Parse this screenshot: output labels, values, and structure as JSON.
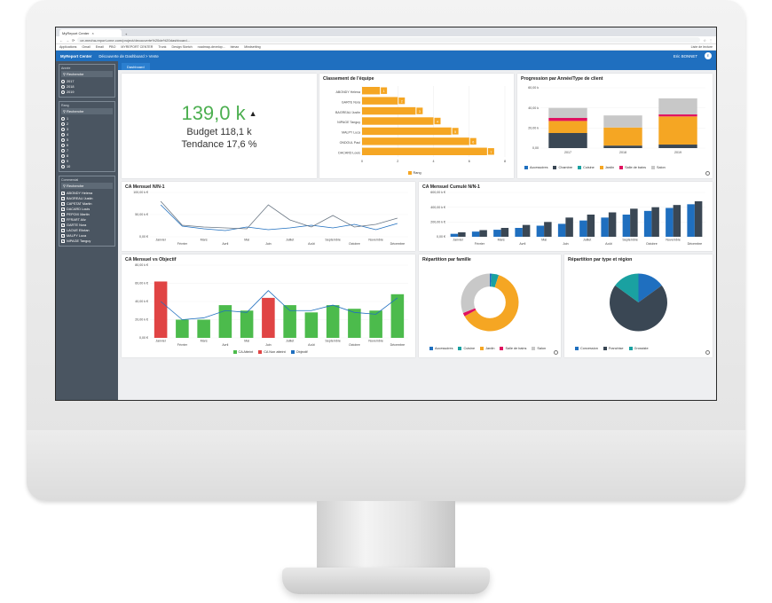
{
  "browser": {
    "tab_title": "MyReport Center",
    "url": "ce-mecha-report-cme.com/project/decouverte%20de%20dashboard...",
    "bookmarks": [
      "Applications",
      "Gmail",
      "Email",
      "PBO",
      "MYREPORT CENTER",
      "Trunk",
      "Design Sketch",
      "roadmap-develop...",
      "bimax",
      "Mindsetting"
    ],
    "bookmarks_right": "Liste de lecture"
  },
  "app": {
    "brand": "MyReport Center",
    "breadcrumb": "Découverte de Dashboard > Vente",
    "user": "Eric BONNET",
    "avatar": "E",
    "tab": "Dashboard"
  },
  "sidebar": {
    "years": {
      "title": "Année",
      "search": "Recherche",
      "options": [
        "2017",
        "2018",
        "2019"
      ]
    },
    "rangs": {
      "title": "Rang",
      "search": "Recherche",
      "options": [
        "1",
        "2",
        "3",
        "4",
        "5",
        "6",
        "7",
        "8",
        "9",
        "10"
      ]
    },
    "commercial": {
      "title": "Commercial",
      "search": "Recherche",
      "options": [
        "ABONDY Helena",
        "BAGREAU Justin",
        "CAPSTAT Martin",
        "DACARD Louis",
        "PEPOIX Martin",
        "FFRART Aliz",
        "GARTE Nora",
        "LAOUE Eliotan",
        "MALPY Luca",
        "NIPAGE Tanguy"
      ]
    }
  },
  "kpi": {
    "value": "139,0 k",
    "budget": "Budget 118,1 k",
    "tendance": "Tendance 17,6 %"
  },
  "colors": {
    "accent": "#1f6fbf",
    "green": "#4cbb4c",
    "red": "#e04444",
    "orange": "#f5a623",
    "navy": "#3a4754",
    "teal": "#1aa1a1",
    "blue": "#1f6fbf",
    "pink": "#e0115f",
    "grey": "#c8c8c8"
  },
  "chart_data": [
    {
      "id": "classement",
      "type": "bar",
      "title": "Classement de l'équipe",
      "categories": [
        "ABONDY Helena",
        "GARTE Nora",
        "BAGREAU Justin",
        "NIPAGE Tanguy",
        "MALPY Luca",
        "ONDOUL Paul",
        "DACARD Louis"
      ],
      "values": [
        1,
        2,
        3,
        4,
        5,
        6,
        7
      ],
      "xlim": [
        0,
        8
      ],
      "ticks": [
        "0",
        "2",
        "4",
        "6",
        "8"
      ],
      "legend": [
        "Rang"
      ]
    },
    {
      "id": "progression",
      "type": "bar",
      "title": "Progression par Année/Type de client",
      "categories": [
        "2017",
        "2018",
        "2019"
      ],
      "ylim": [
        0,
        60000
      ],
      "yticks": [
        "0,00",
        "20,00 k",
        "40,00 k",
        "60,00 k"
      ],
      "series": [
        {
          "name": "Accessoires",
          "color": "#1f6fbf",
          "values": [
            0,
            0,
            0
          ]
        },
        {
          "name": "Chambre",
          "color": "#3a4754",
          "values": [
            15000,
            2500,
            3500
          ]
        },
        {
          "name": "Cuisine",
          "color": "#1aa1a1",
          "values": [
            0,
            0,
            0
          ]
        },
        {
          "name": "Jardin",
          "color": "#f5a623",
          "values": [
            12000,
            18000,
            28000
          ]
        },
        {
          "name": "Salle de bains",
          "color": "#e0115f",
          "values": [
            3000,
            0,
            2000
          ]
        },
        {
          "name": "Salon",
          "color": "#c8c8c8",
          "values": [
            10000,
            12000,
            16000
          ]
        }
      ]
    },
    {
      "id": "ca_mensuel",
      "type": "line",
      "title": "CA Mensuel N/N-1",
      "categories": [
        "Janvier",
        "Février",
        "Mars",
        "Avril",
        "Mai",
        "Juin",
        "Juillet",
        "Août",
        "Septembre",
        "Octobre",
        "Novembre",
        "Décembre"
      ],
      "ylim": [
        0,
        100000
      ],
      "yticks": [
        "0,00 €",
        "50,00 k €",
        "100,00 k €"
      ],
      "series": [
        {
          "name": "N",
          "values": [
            72000,
            24000,
            18000,
            14000,
            22000,
            16000,
            20000,
            26000,
            20000,
            28000,
            16000,
            30000
          ]
        },
        {
          "name": "N-1",
          "values": [
            80000,
            26000,
            22000,
            20000,
            18000,
            72000,
            38000,
            22000,
            48000,
            22000,
            28000,
            42000
          ]
        }
      ]
    },
    {
      "id": "ca_cumule",
      "type": "bar",
      "title": "CA Mensuel Cumulé N/N-1",
      "categories": [
        "Janvier",
        "Février",
        "Mars",
        "Avril",
        "Mai",
        "Juin",
        "Juillet",
        "Août",
        "Septembre",
        "Octobre",
        "Novembre",
        "Décembre"
      ],
      "ylim": [
        0,
        600000
      ],
      "yticks": [
        "0,00 €",
        "200,00 k €",
        "400,00 k €",
        "600,00 k €"
      ],
      "series": [
        {
          "name": "N",
          "values": [
            40000,
            70000,
            95000,
            120000,
            150000,
            175000,
            220000,
            260000,
            300000,
            350000,
            390000,
            440000
          ]
        },
        {
          "name": "N-1",
          "values": [
            60000,
            90000,
            120000,
            160000,
            200000,
            260000,
            300000,
            330000,
            380000,
            400000,
            430000,
            480000
          ]
        }
      ]
    },
    {
      "id": "ca_objectif",
      "type": "bar",
      "title": "CA Mensuel vs Objectif",
      "categories": [
        "Janvier",
        "Février",
        "Mars",
        "Avril",
        "Mai",
        "Juin",
        "Juillet",
        "Août",
        "Septembre",
        "Octobre",
        "Novembre",
        "Décembre"
      ],
      "ylim": [
        0,
        80000
      ],
      "yticks": [
        "0,00 €",
        "20,00 k €",
        "40,00 k €",
        "60,00 k €",
        "80,00 k €"
      ],
      "values": [
        62000,
        20000,
        20000,
        36000,
        30000,
        44000,
        36000,
        28000,
        36000,
        32000,
        30000,
        48000
      ],
      "status": [
        "non",
        "ok",
        "ok",
        "ok",
        "ok",
        "non",
        "ok",
        "ok",
        "ok",
        "ok",
        "ok",
        "ok"
      ],
      "objectif": [
        40000,
        20000,
        22000,
        30000,
        28000,
        52000,
        30000,
        30000,
        36000,
        28000,
        26000,
        44000
      ],
      "legend": [
        "CA Atteint",
        "CA Non atteint",
        "Objectif"
      ]
    },
    {
      "id": "repartition_famille",
      "type": "pie",
      "title": "Répartition par famille",
      "labels": [
        "Accessoires",
        "Cuisine",
        "Jardin",
        "Salle de bains",
        "Salon"
      ],
      "values": [
        1,
        4,
        62,
        2,
        31
      ],
      "colors": [
        "#1f6fbf",
        "#1aa1a1",
        "#f5a623",
        "#e0115f",
        "#c8c8c8"
      ]
    },
    {
      "id": "repartition_type",
      "type": "pie",
      "title": "Répartition par type et région",
      "labels": [
        "Concession",
        "Franchise",
        "Grossiste"
      ],
      "values": [
        15,
        70,
        15
      ],
      "colors": [
        "#1f6fbf",
        "#3a4754",
        "#1aa1a1"
      ]
    }
  ]
}
